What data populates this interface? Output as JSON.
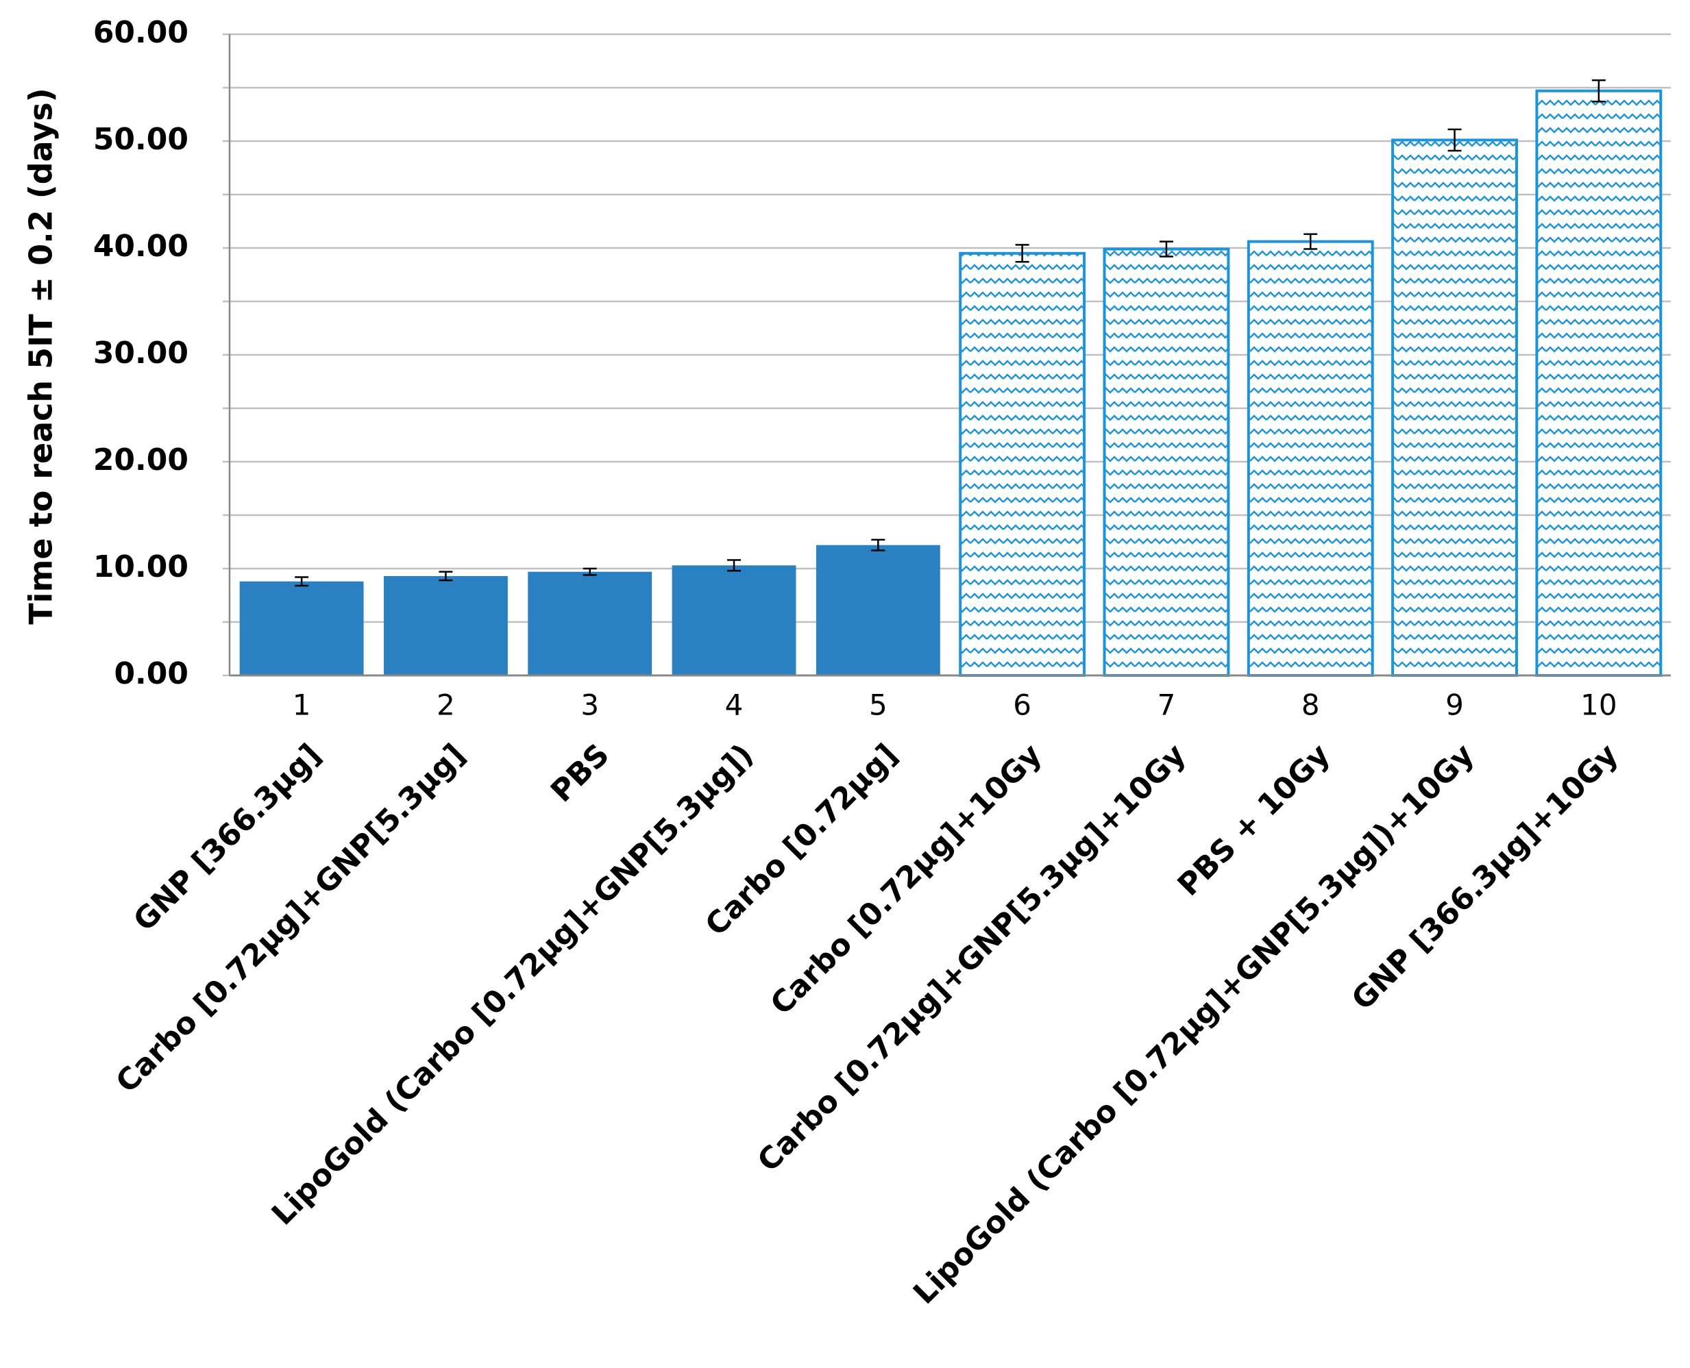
{
  "chart_data": {
    "type": "bar",
    "y_label": "Time to reach 5IT ± 0.2 (days)",
    "categories": [
      "1",
      "2",
      "3",
      "4",
      "5",
      "6",
      "7",
      "8",
      "9",
      "10"
    ],
    "category_names": [
      "GNP [366.3µg]",
      "Carbo [0.72µg]+GNP[5.3µg]",
      "PBS",
      "LipoGold (Carbo [0.72µg]+GNP[5.3µg])",
      "Carbo [0.72µg]",
      "Carbo [0.72µg]+10Gy",
      "Carbo [0.72µg]+GNP[5.3µg]+10Gy",
      "PBS + 10Gy",
      "LipoGold (Carbo [0.72µg]+GNP[5.3µg])+10Gy",
      "GNP [366.3µg]+10Gy"
    ],
    "values": [
      8.8,
      9.3,
      9.7,
      10.3,
      12.2,
      39.5,
      39.9,
      40.6,
      50.1,
      54.7
    ],
    "errors": [
      0.4,
      0.4,
      0.3,
      0.5,
      0.5,
      0.8,
      0.7,
      0.7,
      1.0,
      1.0
    ],
    "bar_fills": [
      "solid",
      "solid",
      "solid",
      "solid",
      "solid",
      "zigzag",
      "zigzag",
      "zigzag",
      "zigzag",
      "zigzag"
    ],
    "color": "#2a80c0",
    "pattern_color": "#1f93d8",
    "ylim": [
      0,
      60
    ],
    "yticks": [
      {
        "value": 0,
        "label": "0.00"
      },
      {
        "value": 10,
        "label": "10.00"
      },
      {
        "value": 20,
        "label": "20.00"
      },
      {
        "value": 30,
        "label": "30.00"
      },
      {
        "value": 40,
        "label": "40.00"
      },
      {
        "value": 50,
        "label": "50.00"
      },
      {
        "value": 60,
        "label": "60.00"
      }
    ],
    "minor_yticks": [
      5,
      15,
      25,
      35,
      45,
      55
    ],
    "grid": true
  }
}
